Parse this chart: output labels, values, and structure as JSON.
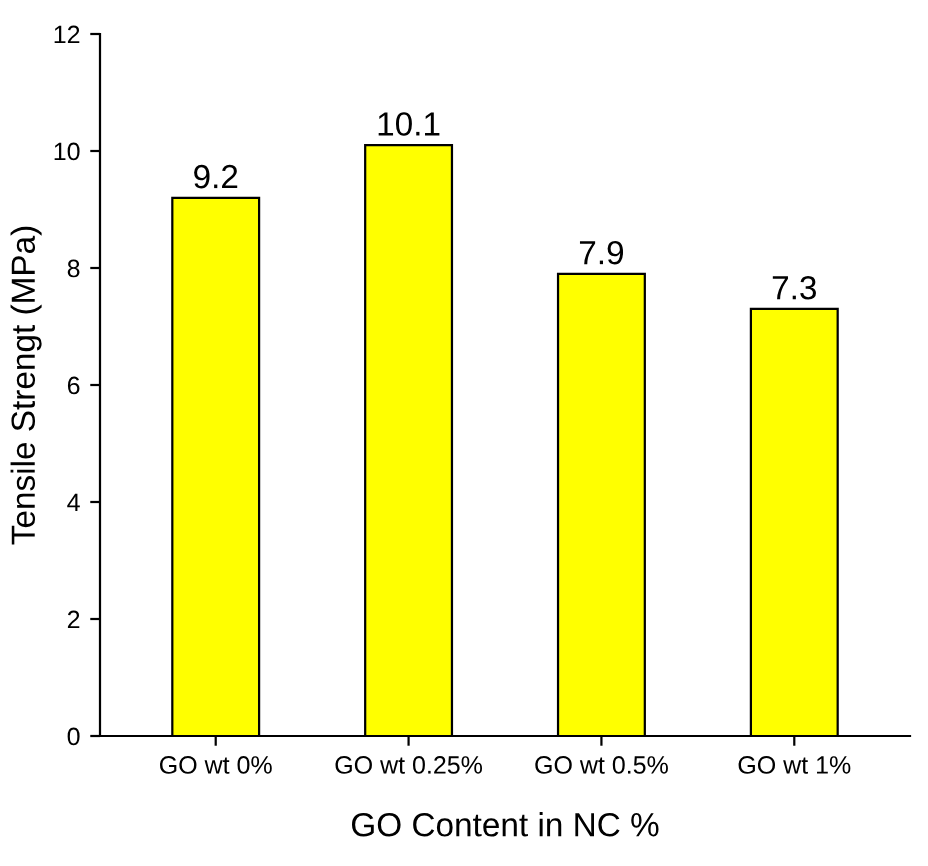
{
  "chart_data": {
    "type": "bar",
    "xlabel": "GO Content in NC %",
    "ylabel": "Tensile Strengt (MPa)",
    "categories": [
      "GO wt 0%",
      "GO wt 0.25%",
      "GO wt 0.5%",
      "GO wt 1%"
    ],
    "values": [
      9.2,
      10.1,
      7.9,
      7.3
    ],
    "color": "#ffff00",
    "ylim": [
      0,
      12
    ],
    "yticks": [
      0,
      2,
      4,
      6,
      8,
      10,
      12
    ],
    "grid": false,
    "data_labels": true
  }
}
